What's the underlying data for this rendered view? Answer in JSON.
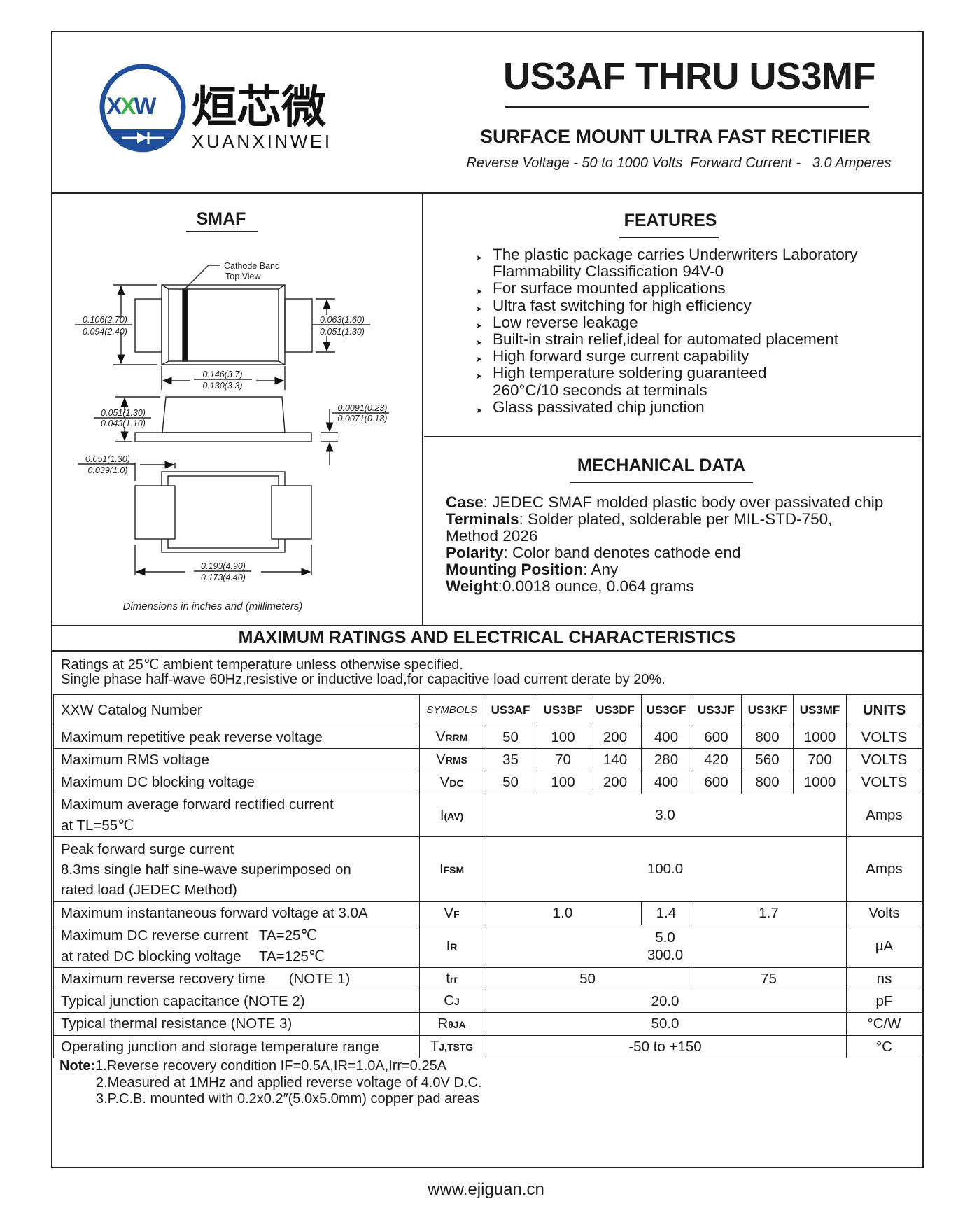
{
  "logo": {
    "initials": "XXW",
    "chinese": "烜芯微",
    "pinyin": "XUANXINWEI",
    "blue": "#1f4f9c",
    "green": "#3cb04a"
  },
  "header": {
    "title": "US3AF THRU US3MF",
    "subtitle": "SURFACE MOUNT ULTRA FAST RECTIFIER",
    "ratings": "Reverse Voltage - 50 to 1000 Volts  Forward Current -   3.0 Amperes"
  },
  "package": {
    "title": "SMAF",
    "cathode_label": "Cathode Band",
    "view_label": "Top View",
    "dims": {
      "height_max": "0.106(2.70)",
      "height_min": "0.094(2.40)",
      "lead_w_max": "0.063(1.60)",
      "lead_w_min": "0.051(1.30)",
      "body_len_max": "0.146(3.7)",
      "body_len_min": "0.130(3.3)",
      "body_h_max": "0.051(1.30)",
      "body_h_min": "0.043(1.10)",
      "lead_t_max": "0.0091(0.23)",
      "lead_t_min": "0.0071(0.18)",
      "pad_len_max": "0.051(1.30)",
      "pad_len_min": "0.039(1.0)",
      "total_len_max": "0.193(4.90)",
      "total_len_min": "0.173(4.40)"
    },
    "caption": "Dimensions in inches and (millimeters)"
  },
  "features": {
    "title": "FEATURES",
    "items": [
      [
        "The plastic package carries Underwriters Laboratory",
        "Flammability Classification 94V-0"
      ],
      [
        "For surface mounted applications"
      ],
      [
        "Ultra fast switching for high efficiency"
      ],
      [
        "Low reverse leakage"
      ],
      [
        "Built-in strain relief,ideal for automated placement"
      ],
      [
        "High forward surge current capability"
      ],
      [
        "High temperature soldering guaranteed",
        "260°C/10 seconds at terminals"
      ],
      [
        "Glass passivated chip junction"
      ]
    ]
  },
  "mechanical": {
    "title": "MECHANICAL DATA",
    "case_label": "Case",
    "case_value": ": JEDEC SMAF molded plastic body over passivated chip",
    "terminals_label": "Terminals",
    "terminals_value": ": Solder plated, solderable per MIL-STD-750,",
    "terminals_value2": "Method 2026",
    "polarity_label": "Polarity",
    "polarity_value": ": Color band denotes cathode end",
    "mounting_label": "Mounting Position",
    "mounting_value": ": Any",
    "weight_label": "Weight",
    "weight_value": ":0.0018 ounce, 0.064 grams"
  },
  "ratings": {
    "title": "MAXIMUM RATINGS AND ELECTRICAL CHARACTERISTICS",
    "conditions": [
      "Ratings at 25℃ ambient temperature unless otherwise specified.",
      "Single phase half-wave 60Hz,resistive or inductive load,for capacitive load current derate by 20%."
    ],
    "header": {
      "catalog": "XXW Catalog  Number",
      "symbols": "SYMBOLS",
      "parts": [
        "US3AF",
        "US3BF",
        "US3DF",
        "US3GF",
        "US3JF",
        "US3KF",
        "US3MF"
      ],
      "units": "UNITS"
    },
    "rows": [
      {
        "label": [
          "Maximum repetitive peak reverse voltage"
        ],
        "symbol": {
          "main": "V",
          "sub": "RRM"
        },
        "values": [
          {
            "text": "50",
            "span": 1
          },
          {
            "text": "100",
            "span": 1
          },
          {
            "text": "200",
            "span": 1
          },
          {
            "text": "400",
            "span": 1
          },
          {
            "text": "600",
            "span": 1
          },
          {
            "text": "800",
            "span": 1
          },
          {
            "text": "1000",
            "span": 1
          }
        ],
        "unit": "VOLTS"
      },
      {
        "label": [
          "Maximum RMS voltage"
        ],
        "symbol": {
          "main": "V",
          "sub": "RMS"
        },
        "values": [
          {
            "text": "35",
            "span": 1
          },
          {
            "text": "70",
            "span": 1
          },
          {
            "text": "140",
            "span": 1
          },
          {
            "text": "280",
            "span": 1
          },
          {
            "text": "420",
            "span": 1
          },
          {
            "text": "560",
            "span": 1
          },
          {
            "text": "700",
            "span": 1
          }
        ],
        "unit": "VOLTS"
      },
      {
        "label": [
          "Maximum DC blocking voltage"
        ],
        "symbol": {
          "main": "V",
          "sub": "DC"
        },
        "values": [
          {
            "text": "50",
            "span": 1
          },
          {
            "text": "100",
            "span": 1
          },
          {
            "text": "200",
            "span": 1
          },
          {
            "text": "400",
            "span": 1
          },
          {
            "text": "600",
            "span": 1
          },
          {
            "text": "800",
            "span": 1
          },
          {
            "text": "1000",
            "span": 1
          }
        ],
        "unit": "VOLTS"
      },
      {
        "label": [
          "Maximum average forward rectified current",
          "at TL=55℃"
        ],
        "symbol": {
          "main": "I",
          "sub": "(AV)"
        },
        "values": [
          {
            "text": "3.0",
            "span": 7
          }
        ],
        "unit": "Amps"
      },
      {
        "label": [
          "Peak forward surge current",
          "8.3ms single half sine-wave superimposed on",
          "rated load (JEDEC Method)"
        ],
        "symbol": {
          "main": "I",
          "sub": "FSM"
        },
        "values": [
          {
            "text": "100.0",
            "span": 7
          }
        ],
        "unit": "Amps"
      },
      {
        "label": [
          "Maximum instantaneous forward voltage at 3.0A"
        ],
        "symbol": {
          "main": "V",
          "sub": "F"
        },
        "values": [
          {
            "text": "1.0",
            "span": 3
          },
          {
            "text": "1.4",
            "span": 1
          },
          {
            "text": "1.7",
            "span": 3
          }
        ],
        "unit": "Volts"
      },
      {
        "label": [
          "Maximum DC reverse current",
          "at rated DC blocking voltage"
        ],
        "conditions": [
          "TA=25℃",
          "TA=125℃"
        ],
        "symbol": {
          "main": "I",
          "sub": "R"
        },
        "values": [
          {
            "text": "5.0",
            "text2": "300.0",
            "span": 7
          }
        ],
        "unit": "µA"
      },
      {
        "label": [
          "Maximum reverse recovery time"
        ],
        "note": "(NOTE 1)",
        "symbol": {
          "main": "t",
          "sub": "rr"
        },
        "values": [
          {
            "text": "50",
            "span": 4
          },
          {
            "text": "75",
            "span": 3
          }
        ],
        "unit": "ns"
      },
      {
        "label": [
          "Typical junction capacitance (NOTE 2)"
        ],
        "symbol": {
          "main": "C",
          "sub": "J"
        },
        "values": [
          {
            "text": "20.0",
            "span": 7
          }
        ],
        "unit": "pF"
      },
      {
        "label": [
          "Typical thermal resistance (NOTE 3)"
        ],
        "symbol": {
          "main": "R",
          "sub": "θJA"
        },
        "values": [
          {
            "text": "50.0",
            "span": 7
          }
        ],
        "unit": "°C/W"
      },
      {
        "label": [
          "Operating junction and storage temperature range"
        ],
        "symbol": {
          "main": "T",
          "sub": "J,TSTG"
        },
        "values": [
          {
            "text": "-50 to +150",
            "span": 7
          }
        ],
        "unit": "°C"
      }
    ]
  },
  "notes": {
    "label": "Note:",
    "items": [
      "1.Reverse recovery condition IF=0.5A,IR=1.0A,Irr=0.25A",
      "2.Measured at 1MHz and applied reverse voltage of 4.0V D.C.",
      "3.P.C.B. mounted with 0.2x0.2″(5.0x5.0mm) copper pad areas"
    ]
  },
  "footer": {
    "url": "www.ejiguan.cn"
  }
}
